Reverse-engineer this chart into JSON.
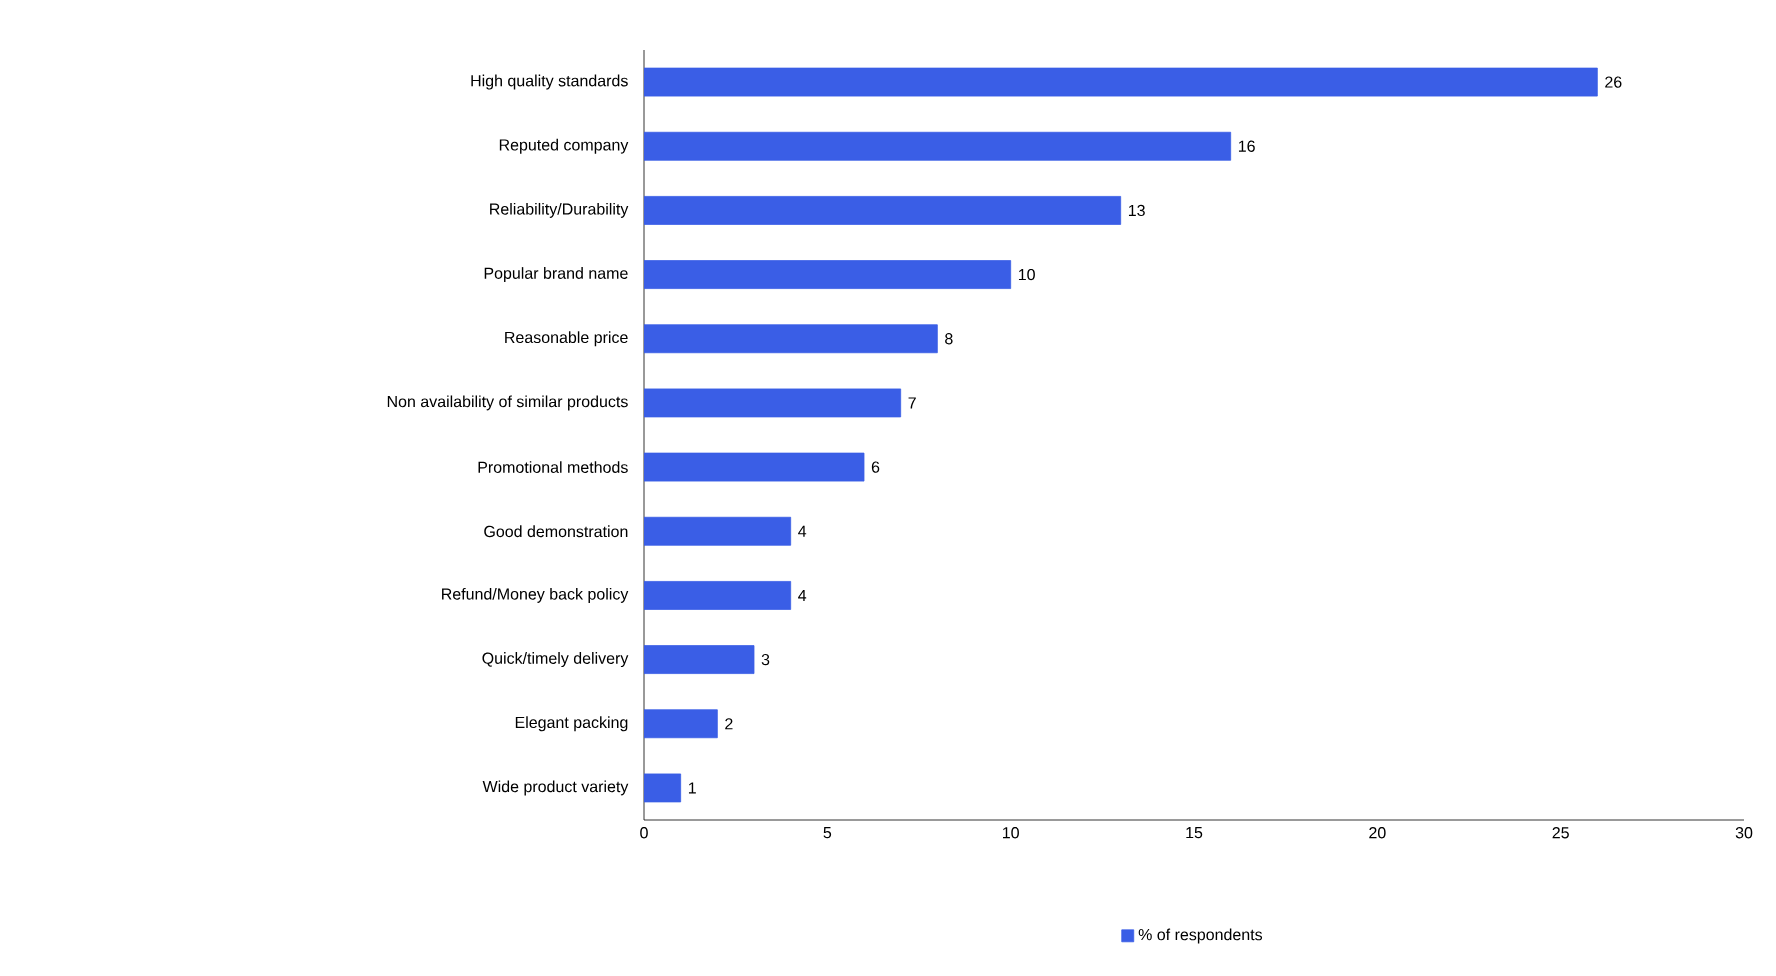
{
  "chart_data": {
    "type": "bar",
    "orientation": "horizontal",
    "categories": [
      "High quality standards",
      "Reputed company",
      "Reliability/Durability",
      "Popular brand name",
      "Reasonable price",
      "Non availability of similar products",
      "Promotional methods",
      "Good demonstration",
      "Refund/Money back policy",
      "Quick/timely delivery",
      "Elegant packing",
      "Wide product variety"
    ],
    "series": [
      {
        "name": "% of respondents",
        "color": "#3a5ee6",
        "values": [
          26,
          16,
          13,
          10,
          8,
          7,
          6,
          4,
          4,
          3,
          2,
          1
        ]
      }
    ],
    "xlim": [
      0,
      30
    ],
    "xticks": [
      0,
      5,
      10,
      15,
      20,
      25,
      30
    ],
    "data_labels": true,
    "legend": "bottom",
    "grid": false
  }
}
